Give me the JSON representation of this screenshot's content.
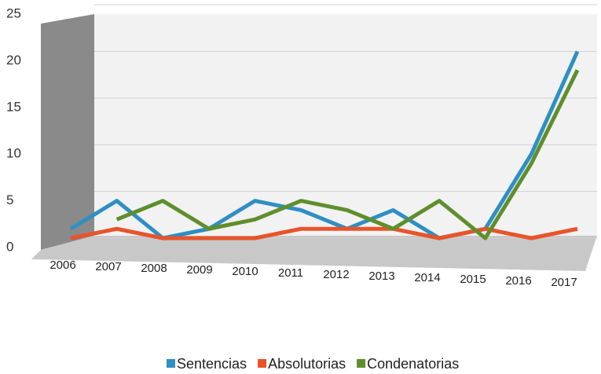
{
  "chart_data": {
    "type": "line",
    "categories": [
      "2006",
      "2007",
      "2008",
      "2009",
      "2010",
      "2011",
      "2012",
      "2013",
      "2014",
      "2015",
      "2016",
      "2017"
    ],
    "series": [
      {
        "name": "Sentencias",
        "color": "#2e8fc4",
        "values": [
          2,
          5,
          1,
          2,
          5,
          4,
          2,
          4,
          1,
          2,
          10,
          21
        ]
      },
      {
        "name": "Absolutorias",
        "color": "#e8542a",
        "values": [
          1,
          2,
          1,
          1,
          1,
          2,
          2,
          2,
          1,
          2,
          1,
          2
        ]
      },
      {
        "name": "Condenatorias",
        "color": "#5f8f2c",
        "values": [
          null,
          3,
          5,
          2,
          3,
          5,
          4,
          2,
          5,
          1,
          9,
          19
        ]
      }
    ],
    "ylim": [
      0,
      25
    ],
    "yticks": [
      0,
      5,
      10,
      15,
      20,
      25
    ],
    "grid": true,
    "legend": "bottom"
  }
}
